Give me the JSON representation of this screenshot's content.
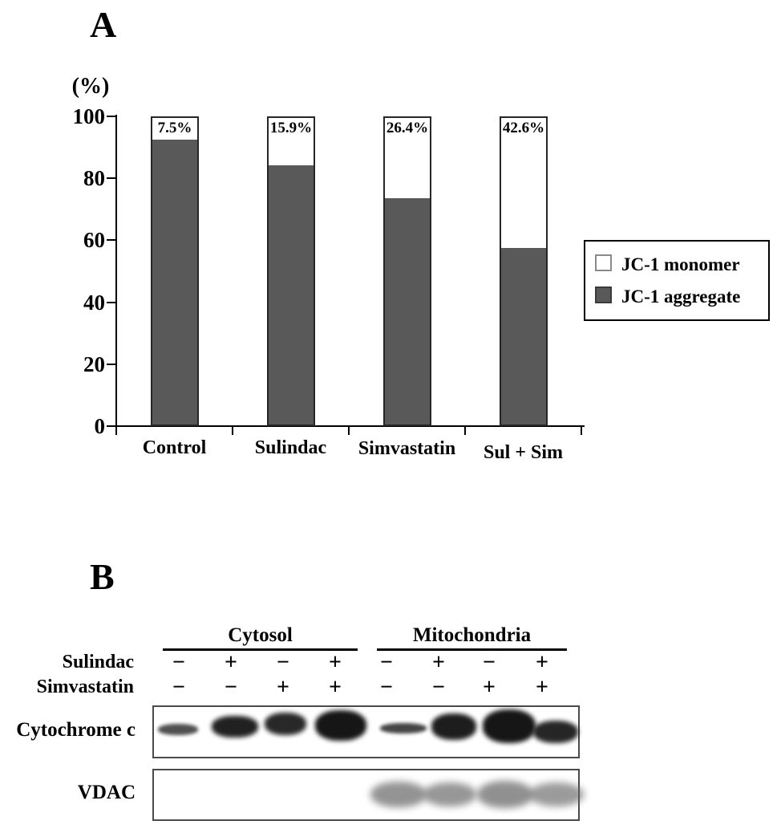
{
  "figure": {
    "panelA": {
      "label": "A",
      "chart_data": {
        "type": "stacked-bar",
        "title": "",
        "ylabel": "(%)",
        "xlabel": "",
        "ylim": [
          0,
          100
        ],
        "yticks": [
          0,
          20,
          40,
          60,
          80,
          100
        ],
        "grid": false,
        "categories": [
          "Control",
          "Sulindac",
          "Simvastatin",
          "Sul + Sim"
        ],
        "series": [
          {
            "name": "JC-1 monomer",
            "color": "#ffffff",
            "values": [
              7.5,
              15.9,
              26.4,
              42.6
            ]
          },
          {
            "name": "JC-1 aggregate",
            "color": "#595959",
            "values": [
              92.5,
              84.1,
              73.6,
              57.4
            ]
          }
        ],
        "bar_labels": [
          "7.5%",
          "15.9%",
          "26.4%",
          "42.6%"
        ],
        "legend_position": "right"
      },
      "legend": {
        "items": [
          {
            "label": "JC-1 monomer",
            "color": "#ffffff"
          },
          {
            "label": "JC-1 aggregate",
            "color": "#595959"
          }
        ]
      }
    },
    "panelB": {
      "label": "B",
      "fraction_groups": [
        {
          "name": "Cytosol"
        },
        {
          "name": "Mitochondria"
        }
      ],
      "treatment_rows": [
        {
          "label": "Sulindac",
          "signs": [
            "−",
            "+",
            "−",
            "+",
            "−",
            "+",
            "−",
            "+"
          ]
        },
        {
          "label": "Simvastatin",
          "signs": [
            "−",
            "−",
            "+",
            "+",
            "−",
            "−",
            "+",
            "+"
          ]
        }
      ],
      "blots": [
        {
          "label": "Cytochrome c",
          "band_intensities": [
            0.75,
            0.95,
            0.92,
            1.0,
            0.8,
            0.97,
            1.0,
            0.93
          ]
        },
        {
          "label": "VDAC",
          "band_intensities": [
            0,
            0,
            0,
            0,
            0.7,
            0.68,
            0.72,
            0.65
          ]
        }
      ]
    },
    "colors": {
      "aggregate_gray": "#595959",
      "axis_black": "#000000",
      "blot_border_gray": "#4a4a4a"
    }
  }
}
